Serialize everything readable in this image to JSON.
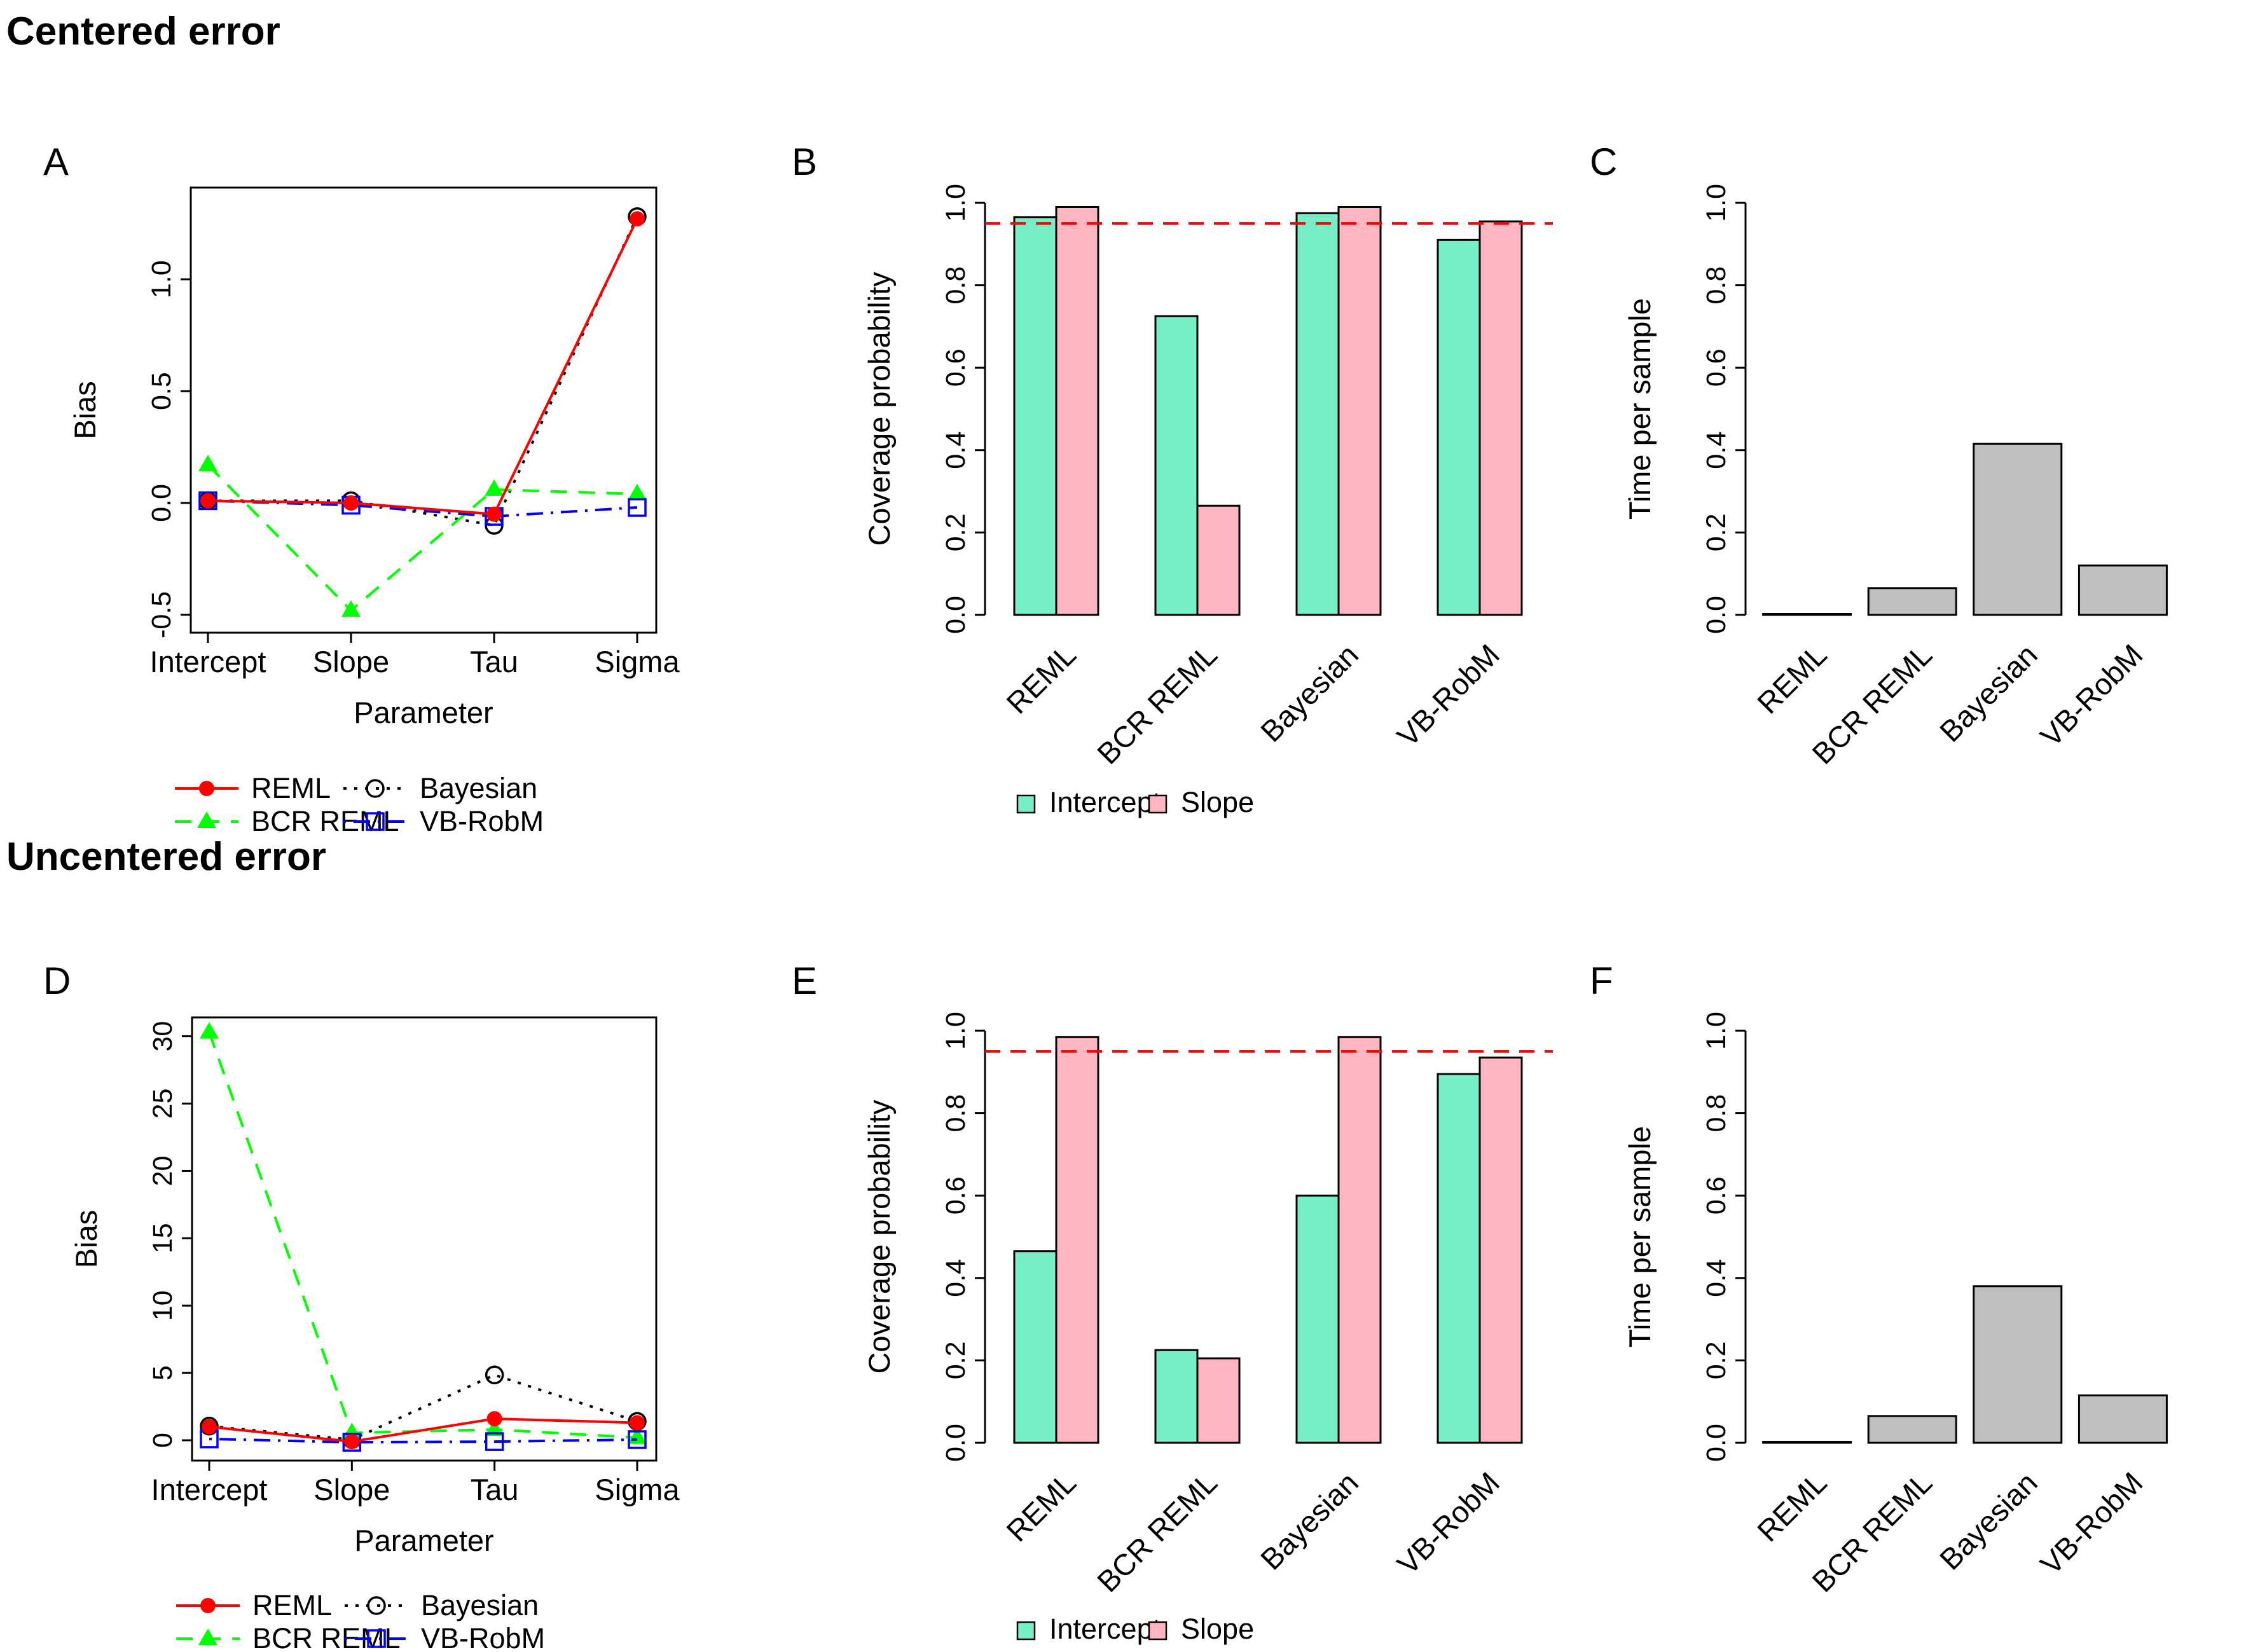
{
  "page": {
    "background": "#FFFFFF",
    "section_titles": [
      "Centered error",
      "Uncentered error"
    ],
    "panel_letters": [
      "A",
      "B",
      "C",
      "D",
      "E",
      "F"
    ]
  },
  "colors": {
    "reml": "#FF0000",
    "bcr_reml": "#00FF00",
    "bayesian": "#000000",
    "vb_robm": "#0000FF",
    "intercept_bar": "#76EEC6",
    "slope_bar": "#FFB6C1",
    "time_bar": "#BFBFBF",
    "reference_line": "#FF0000"
  },
  "chart_data": [
    {
      "panel": "A",
      "section": "Centered error",
      "type": "line",
      "xlabel": "Parameter",
      "ylabel": "Bias",
      "categories": [
        "Intercept",
        "Slope",
        "Tau",
        "Sigma"
      ],
      "ylim": [
        -0.58,
        1.41
      ],
      "yticks": [
        -0.5,
        0.0,
        0.5,
        1.0
      ],
      "ytick_labels": [
        "-0.5",
        "0.0",
        "0.5",
        "1.0"
      ],
      "series": [
        {
          "name": "REML",
          "color": "#FF0000",
          "linetype": "solid",
          "marker": "filled-circle",
          "values": [
            0.01,
            0.0,
            -0.05,
            1.27
          ]
        },
        {
          "name": "BCR REML",
          "color": "#00FF00",
          "linetype": "dashed",
          "marker": "filled-triangle",
          "values": [
            0.17,
            -0.48,
            0.06,
            0.04
          ]
        },
        {
          "name": "Bayesian",
          "color": "#000000",
          "linetype": "dotted",
          "marker": "open-circle",
          "values": [
            0.01,
            0.01,
            -0.1,
            1.28
          ]
        },
        {
          "name": "VB-RobM",
          "color": "#0000FF",
          "linetype": "dashdot",
          "marker": "open-square",
          "values": [
            0.01,
            -0.01,
            -0.06,
            -0.02
          ]
        }
      ],
      "legend": {
        "position": "below",
        "entries": [
          "REML",
          "BCR REML",
          "Bayesian",
          "VB-RobM"
        ]
      }
    },
    {
      "panel": "B",
      "section": "Centered error",
      "type": "grouped-bar",
      "xlabel": "",
      "ylabel": "Coverage probability",
      "categories": [
        "REML",
        "BCR REML",
        "Bayesian",
        "VB-RobM"
      ],
      "ylim": [
        0,
        1
      ],
      "yticks": [
        0.0,
        0.2,
        0.4,
        0.6,
        0.8,
        1.0
      ],
      "ytick_labels": [
        "0.0",
        "0.2",
        "0.4",
        "0.6",
        "0.8",
        "1.0"
      ],
      "x_tick_rotation": 45,
      "series": [
        {
          "name": "Intercept",
          "color": "#76EEC6",
          "values": [
            0.965,
            0.725,
            0.975,
            0.91
          ]
        },
        {
          "name": "Slope",
          "color": "#FFB6C1",
          "values": [
            0.99,
            0.265,
            0.99,
            0.955
          ]
        }
      ],
      "reference_line": {
        "value": 0.95,
        "style": "dashed",
        "color": "#FF0000"
      },
      "legend": {
        "position": "below",
        "entries": [
          "Intercept",
          "Slope"
        ]
      }
    },
    {
      "panel": "C",
      "section": "Centered error",
      "type": "bar",
      "xlabel": "",
      "ylabel": "Time per sample",
      "categories": [
        "REML",
        "BCR REML",
        "Bayesian",
        "VB-RobM"
      ],
      "ylim": [
        0,
        1
      ],
      "yticks": [
        0.0,
        0.2,
        0.4,
        0.6,
        0.8,
        1.0
      ],
      "ytick_labels": [
        "0.0",
        "0.2",
        "0.4",
        "0.6",
        "0.8",
        "1.0"
      ],
      "x_tick_rotation": 45,
      "bar_color": "#BFBFBF",
      "values": [
        0.002,
        0.065,
        0.415,
        0.12
      ]
    },
    {
      "panel": "D",
      "section": "Uncentered error",
      "type": "line",
      "xlabel": "Parameter",
      "ylabel": "Bias",
      "categories": [
        "Intercept",
        "Slope",
        "Tau",
        "Sigma"
      ],
      "ylim": [
        -1.51,
        31.4
      ],
      "yticks": [
        0,
        5,
        10,
        15,
        20,
        25,
        30
      ],
      "ytick_labels": [
        "0",
        "5",
        "10",
        "15",
        "20",
        "25",
        "30"
      ],
      "series": [
        {
          "name": "REML",
          "color": "#FF0000",
          "linetype": "solid",
          "marker": "filled-circle",
          "values": [
            1.0,
            -0.1,
            1.6,
            1.3
          ]
        },
        {
          "name": "BCR REML",
          "color": "#00FF00",
          "linetype": "dashed",
          "marker": "filled-triangle",
          "values": [
            30.3,
            0.55,
            0.8,
            0.2
          ]
        },
        {
          "name": "Bayesian",
          "color": "#000000",
          "linetype": "dotted",
          "marker": "open-circle",
          "values": [
            1.05,
            0.05,
            4.85,
            1.4
          ]
        },
        {
          "name": "VB-RobM",
          "color": "#0000FF",
          "linetype": "dashdot",
          "marker": "open-square",
          "values": [
            0.1,
            -0.15,
            -0.1,
            0.05
          ]
        }
      ],
      "legend": {
        "position": "below",
        "entries": [
          "REML",
          "BCR REML",
          "Bayesian",
          "VB-RobM"
        ]
      }
    },
    {
      "panel": "E",
      "section": "Uncentered error",
      "type": "grouped-bar",
      "xlabel": "",
      "ylabel": "Coverage probability",
      "categories": [
        "REML",
        "BCR REML",
        "Bayesian",
        "VB-RobM"
      ],
      "ylim": [
        0,
        1
      ],
      "yticks": [
        0.0,
        0.2,
        0.4,
        0.6,
        0.8,
        1.0
      ],
      "ytick_labels": [
        "0.0",
        "0.2",
        "0.4",
        "0.6",
        "0.8",
        "1.0"
      ],
      "x_tick_rotation": 45,
      "series": [
        {
          "name": "Intercept",
          "color": "#76EEC6",
          "values": [
            0.465,
            0.225,
            0.6,
            0.895
          ]
        },
        {
          "name": "Slope",
          "color": "#FFB6C1",
          "values": [
            0.985,
            0.205,
            0.985,
            0.935
          ]
        }
      ],
      "reference_line": {
        "value": 0.95,
        "style": "dashed",
        "color": "#FF0000"
      },
      "legend": {
        "position": "below",
        "entries": [
          "Intercept",
          "Slope"
        ]
      }
    },
    {
      "panel": "F",
      "section": "Uncentered error",
      "type": "bar",
      "xlabel": "",
      "ylabel": "Time per sample",
      "categories": [
        "REML",
        "BCR REML",
        "Bayesian",
        "VB-RobM"
      ],
      "ylim": [
        0,
        1
      ],
      "yticks": [
        0.0,
        0.2,
        0.4,
        0.6,
        0.8,
        1.0
      ],
      "ytick_labels": [
        "0.0",
        "0.2",
        "0.4",
        "0.6",
        "0.8",
        "1.0"
      ],
      "x_tick_rotation": 45,
      "bar_color": "#BFBFBF",
      "values": [
        0.002,
        0.065,
        0.38,
        0.115
      ]
    }
  ]
}
